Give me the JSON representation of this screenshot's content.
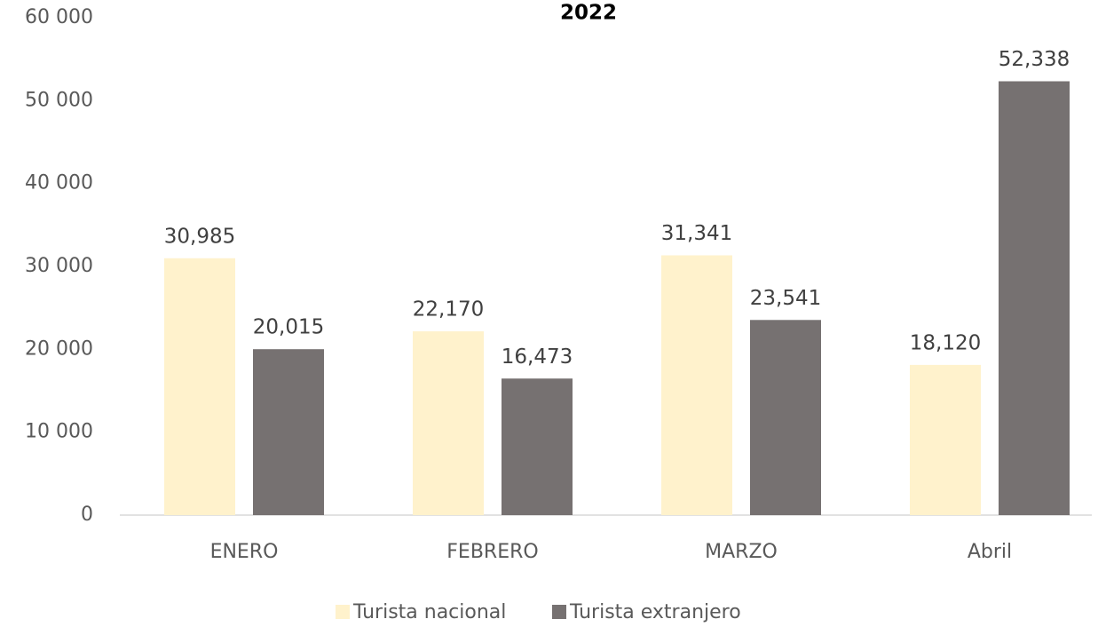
{
  "chart_data": {
    "type": "bar",
    "title": "2022",
    "categories": [
      "ENERO",
      "FEBRERO",
      "MARZO",
      "Abril"
    ],
    "series": [
      {
        "name": "Turista nacional",
        "color": "#fff2cc",
        "values": [
          30985,
          22170,
          31341,
          18120
        ],
        "value_labels": [
          "30,985",
          "22,170",
          "31,341",
          "18,120"
        ]
      },
      {
        "name": "Turista extranjero",
        "color": "#767171",
        "values": [
          20015,
          16473,
          23541,
          52338
        ],
        "value_labels": [
          "20,015",
          "16,473",
          "23,541",
          "52,338"
        ]
      }
    ],
    "ylim": [
      0,
      60000
    ],
    "yticks": [
      {
        "value": 0,
        "label": "0"
      },
      {
        "value": 10000,
        "label": "10 000"
      },
      {
        "value": 20000,
        "label": "20 000"
      },
      {
        "value": 30000,
        "label": "30 000"
      },
      {
        "value": 40000,
        "label": "40 000"
      },
      {
        "value": 50000,
        "label": "50 000"
      },
      {
        "value": 60000,
        "label": "60 000"
      }
    ],
    "grid": false,
    "legend": "bottom"
  }
}
